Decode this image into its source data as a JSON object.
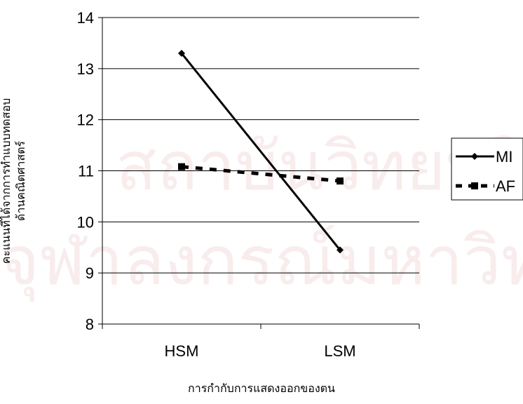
{
  "chart_data": {
    "type": "line",
    "title": "",
    "xlabel": "การกำกับการแสดงออกของตน",
    "ylabel_lines": [
      "คะแนนที่ได้จากการทำแบบทดสอบ",
      "ด้านคณิตศาสตร์"
    ],
    "categories": [
      "HSM",
      "LSM"
    ],
    "ylim": [
      8,
      14
    ],
    "yticks": [
      "8",
      "9",
      "10",
      "11",
      "12",
      "13",
      "14"
    ],
    "grid": true,
    "legend_position": "right",
    "series": [
      {
        "name": "MI",
        "values": [
          13.3,
          9.45
        ],
        "style": "solid",
        "marker": "diamond",
        "color": "#000000"
      },
      {
        "name": "AF",
        "values": [
          11.08,
          10.8
        ],
        "style": "dashed",
        "marker": "square",
        "color": "#000000"
      }
    ]
  },
  "watermark": {
    "lines": [
      "สถาบันวิทยบริการ",
      "จุฬาลงกรณ์มหาวิทยาลัย"
    ],
    "color": "#f2dcdc"
  }
}
